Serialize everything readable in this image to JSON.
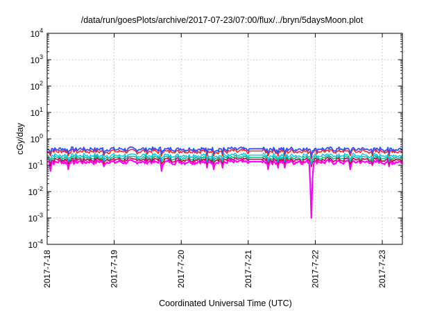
{
  "chart_data": {
    "type": "line",
    "title": "/data/run/goesPlots/archive/2017-07-23/07:00/flux/../bryn/5daysMoon.plot",
    "xlabel": "Coordinated Universal Time (UTC)",
    "ylabel": "cGy/day",
    "x_range": [
      0,
      5.3
    ],
    "x_ticks": [
      {
        "x": 0,
        "label": "2017-7-18"
      },
      {
        "x": 1,
        "label": "2017-7-19"
      },
      {
        "x": 2,
        "label": "2017-7-20"
      },
      {
        "x": 3,
        "label": "2017-7-21"
      },
      {
        "x": 4,
        "label": "2017-7-22"
      },
      {
        "x": 5,
        "label": "2017-7-23"
      }
    ],
    "y_scale": "log",
    "ylim": [
      0.0001,
      10000
    ],
    "y_ticks": [
      {
        "value": 10000,
        "base": "10",
        "exp": "4"
      },
      {
        "value": 1000,
        "base": "10",
        "exp": "3"
      },
      {
        "value": 100,
        "base": "10",
        "exp": "2"
      },
      {
        "value": 10,
        "base": "10",
        "exp": "1"
      },
      {
        "value": 1,
        "base": "10",
        "exp": "0"
      },
      {
        "value": 0.1,
        "base": "10",
        "exp": "-1"
      },
      {
        "value": 0.01,
        "base": "10",
        "exp": "-2"
      },
      {
        "value": 0.001,
        "base": "10",
        "exp": "-3"
      },
      {
        "value": 0.0001,
        "base": "10",
        "exp": "-4"
      }
    ],
    "grid": true,
    "series": [
      {
        "color": "#ff00ff",
        "base": 0.13,
        "width": 2.2
      },
      {
        "color": "#cc0044",
        "base": 0.16,
        "width": 1.6
      },
      {
        "color": "#00bb88",
        "base": 0.19,
        "width": 1.4
      },
      {
        "color": "#00c8e8",
        "base": 0.23,
        "width": 1.4
      },
      {
        "color": "#ff2020",
        "base": 0.33,
        "width": 1.6
      },
      {
        "color": "#3050ff",
        "base": 0.4,
        "width": 1.8
      }
    ],
    "flat_segment": {
      "x_start": 3.0,
      "x_end": 3.2
    },
    "magenta_dips": [
      {
        "x": 0.05,
        "y": 0.06
      },
      {
        "x": 0.32,
        "y": 0.07
      },
      {
        "x": 0.85,
        "y": 0.09
      },
      {
        "x": 1.7,
        "y": 0.06
      },
      {
        "x": 2.38,
        "y": 0.08
      },
      {
        "x": 2.48,
        "y": 0.07
      },
      {
        "x": 2.62,
        "y": 0.08
      },
      {
        "x": 3.3,
        "y": 0.07
      },
      {
        "x": 3.45,
        "y": 0.08
      },
      {
        "x": 3.55,
        "y": 0.08
      },
      {
        "x": 3.95,
        "y": 0.001
      },
      {
        "x": 4.52,
        "y": 0.07
      },
      {
        "x": 4.85,
        "y": 0.1
      },
      {
        "x": 5.1,
        "y": 0.09
      }
    ]
  }
}
